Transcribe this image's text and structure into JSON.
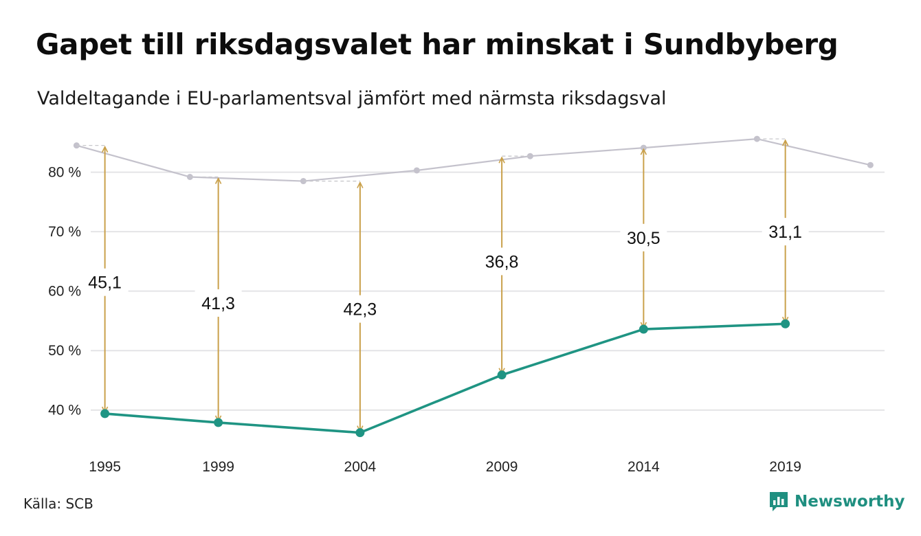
{
  "title": "Gapet till riksdagsvalet har minskat i Sundbyberg",
  "subtitle": "Valdeltagande i EU-parlamentsval jämfört med närmsta riksdagsval",
  "source": "Källa: SCB",
  "brand": "Newsworthy",
  "colors": {
    "eu_line": "#1f9483",
    "riksdag_line": "#c4c2cc",
    "arrow": "#c9a04a",
    "grid": "#e4e4e6",
    "brand": "#1f8f80"
  },
  "chart_data": {
    "type": "line",
    "ylim": [
      35,
      87
    ],
    "xlim": [
      1994.5,
      2022.5
    ],
    "y_ticks": [
      {
        "value": 40,
        "label": "40 %"
      },
      {
        "value": 50,
        "label": "50 %"
      },
      {
        "value": 60,
        "label": "60 %"
      },
      {
        "value": 70,
        "label": "70 %"
      },
      {
        "value": 80,
        "label": "80 %"
      }
    ],
    "x_ticks": [
      {
        "value": 1995,
        "label": "1995"
      },
      {
        "value": 1999,
        "label": "1999"
      },
      {
        "value": 2004,
        "label": "2004"
      },
      {
        "value": 2009,
        "label": "2009"
      },
      {
        "value": 2014,
        "label": "2014"
      },
      {
        "value": 2019,
        "label": "2019"
      }
    ],
    "grid": true,
    "series": [
      {
        "role": "riksdag",
        "x": [
          1994,
          1998,
          2002,
          2006,
          2010,
          2014,
          2018,
          2022
        ],
        "y": [
          84.5,
          79.2,
          78.5,
          80.3,
          82.7,
          84.1,
          85.6,
          81.2
        ]
      },
      {
        "role": "eu",
        "x": [
          1995,
          1999,
          2004,
          2009,
          2014,
          2019
        ],
        "y": [
          39.4,
          37.9,
          36.2,
          45.9,
          53.6,
          54.5
        ]
      }
    ],
    "gaps": [
      {
        "x": 1995,
        "from": 39.4,
        "to": 84.5,
        "label": "45,1",
        "label_y": 61.5
      },
      {
        "x": 1999,
        "from": 37.9,
        "to": 79.2,
        "label": "41,3",
        "label_y": 58.0
      },
      {
        "x": 2004,
        "from": 36.2,
        "to": 78.5,
        "label": "42,3",
        "label_y": 57.0
      },
      {
        "x": 2009,
        "from": 45.9,
        "to": 82.7,
        "label": "36,8",
        "label_y": 65.0
      },
      {
        "x": 2014,
        "from": 53.6,
        "to": 84.1,
        "label": "30,5",
        "label_y": 69.0
      },
      {
        "x": 2019,
        "from": 54.5,
        "to": 85.6,
        "label": "31,1",
        "label_y": 70.0
      }
    ]
  }
}
